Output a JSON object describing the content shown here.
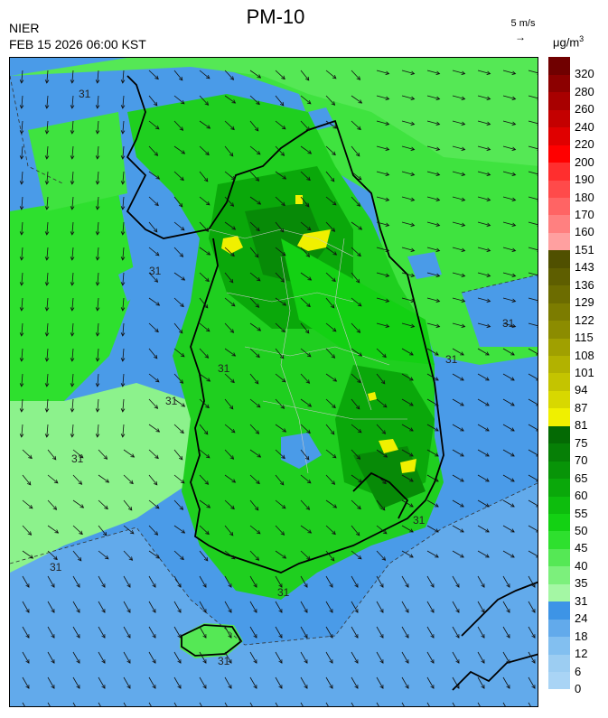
{
  "header": {
    "title": "PM-10",
    "org": "NIER",
    "datetime": "FEB 15 2026 06:00 KST",
    "wind_reference": "5 m/s",
    "unit_base": "μg/m",
    "unit_sup": "3"
  },
  "legend": {
    "levels": [
      {
        "label": "0",
        "color": "#a9d4f5"
      },
      {
        "label": "6",
        "color": "#9ccdf2"
      },
      {
        "label": "12",
        "color": "#82bff0"
      },
      {
        "label": "18",
        "color": "#62aaeb"
      },
      {
        "label": "24",
        "color": "#3d94e6"
      },
      {
        "label": "31",
        "color": "#a4f7a4"
      },
      {
        "label": "35",
        "color": "#7cf07c"
      },
      {
        "label": "40",
        "color": "#55e855"
      },
      {
        "label": "45",
        "color": "#2ee02e"
      },
      {
        "label": "50",
        "color": "#13d113"
      },
      {
        "label": "55",
        "color": "#0dbd0d"
      },
      {
        "label": "60",
        "color": "#0aa80a"
      },
      {
        "label": "65",
        "color": "#089408"
      },
      {
        "label": "70",
        "color": "#067f06"
      },
      {
        "label": "75",
        "color": "#046a04"
      },
      {
        "label": "81",
        "color": "#f0f000"
      },
      {
        "label": "87",
        "color": "#d8d800"
      },
      {
        "label": "94",
        "color": "#c4c400"
      },
      {
        "label": "101",
        "color": "#b2b200"
      },
      {
        "label": "108",
        "color": "#a0a000"
      },
      {
        "label": "115",
        "color": "#8c8c00"
      },
      {
        "label": "122",
        "color": "#7c7c00"
      },
      {
        "label": "129",
        "color": "#6c6c00"
      },
      {
        "label": "136",
        "color": "#5e5e00"
      },
      {
        "label": "143",
        "color": "#505000"
      },
      {
        "label": "151",
        "color": "#ffa0a0"
      },
      {
        "label": "160",
        "color": "#ff8080"
      },
      {
        "label": "170",
        "color": "#ff6464"
      },
      {
        "label": "180",
        "color": "#ff4a4a"
      },
      {
        "label": "190",
        "color": "#ff2e2e"
      },
      {
        "label": "200",
        "color": "#ff0000"
      },
      {
        "label": "220",
        "color": "#e00000"
      },
      {
        "label": "240",
        "color": "#c40000"
      },
      {
        "label": "260",
        "color": "#a80000"
      },
      {
        "label": "280",
        "color": "#8c0000"
      },
      {
        "label": "320",
        "color": "#700000"
      }
    ]
  },
  "map": {
    "contour_label": "31",
    "colors": {
      "sea_low": "#4a9be8",
      "sea_lower": "#62aaeb",
      "light_green": "#8cf28c",
      "green": "#3fe33f",
      "mid_green": "#1fcf1f",
      "dark_green": "#0aa80a",
      "darker_green": "#078a07",
      "yellow": "#f0f000",
      "coast": "#000000",
      "boundary": "#c8c8c8"
    }
  }
}
